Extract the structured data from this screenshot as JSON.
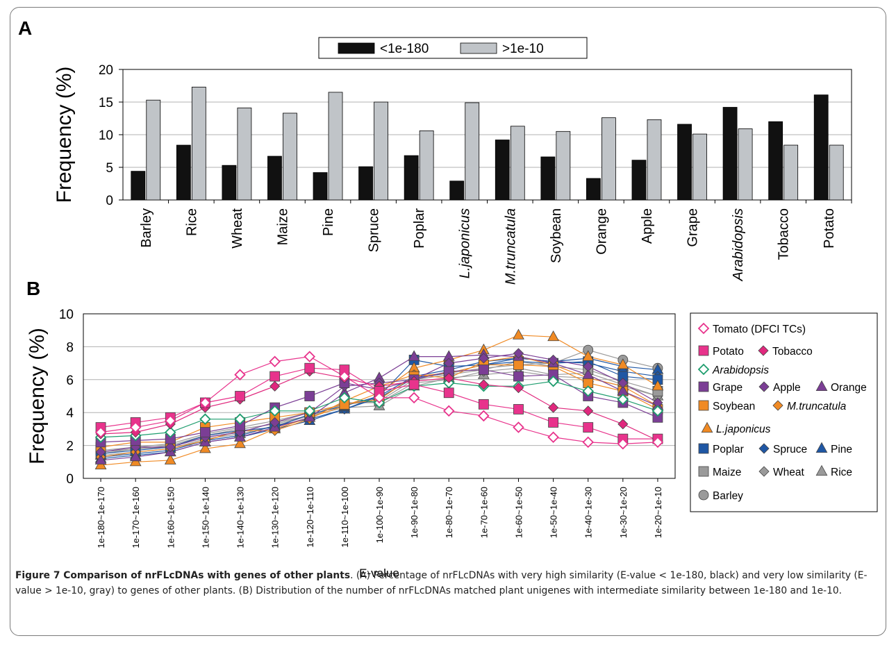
{
  "panel_a": {
    "label": "A",
    "chart_data": {
      "type": "bar",
      "categories": [
        "Barley",
        "Rice",
        "Wheat",
        "Maize",
        "Pine",
        "Spruce",
        "Poplar",
        "L.japonicus",
        "M.truncatula",
        "Soybean",
        "Orange",
        "Apple",
        "Grape",
        "Arabidopsis",
        "Tobacco",
        "Potato"
      ],
      "italic_categories": [
        "L.japonicus",
        "M.truncatula",
        "Arabidopsis"
      ],
      "series": [
        {
          "name": "<1e-180",
          "color": "#111111",
          "values": [
            4.4,
            8.4,
            5.3,
            6.7,
            4.2,
            5.1,
            6.8,
            2.9,
            9.2,
            6.6,
            3.3,
            6.1,
            11.6,
            14.2,
            12.0,
            16.1
          ]
        },
        {
          "name": ">1e-10",
          "color": "#c0c4c8",
          "values": [
            15.3,
            17.3,
            14.1,
            13.3,
            16.5,
            15.0,
            10.6,
            14.9,
            11.3,
            10.5,
            12.6,
            12.3,
            10.1,
            10.9,
            8.4,
            8.4
          ]
        }
      ],
      "title": "",
      "xlabel": "",
      "ylabel": "Frequency (%)",
      "ylim": [
        0,
        20
      ],
      "yticks": [
        "0",
        "5",
        "10",
        "15",
        "20"
      ],
      "grid": true,
      "legend_position": "top-center"
    }
  },
  "panel_b": {
    "label": "B",
    "chart_data": {
      "type": "line",
      "x": [
        "1e-180~1e-170",
        "1e-170~1e-160",
        "1e-160~1e-150",
        "1e-150~1e-140",
        "1e-140~1e-130",
        "1e-130~1e-120",
        "1e-120~1e-110",
        "1e-110~1e-100",
        "1e-100~1e-90",
        "1e-90~1e-80",
        "1e-80~1e-70",
        "1e-70~1e-60",
        "1e-60~1e-50",
        "1e-50~1e-40",
        "1e-40~1e-30",
        "1e-30~1e-20",
        "1e-20~1e-10"
      ],
      "xlabel": "E-value",
      "ylabel": "Frequency (%)",
      "ylim": [
        0,
        10
      ],
      "yticks": [
        "0",
        "2",
        "4",
        "6",
        "8",
        "10"
      ],
      "grid": true,
      "legend_position": "right",
      "series": [
        {
          "name": "Tomato (DFCI TCs)",
          "marker": "diamond-open",
          "color": "#e8338c",
          "values": [
            2.8,
            3.1,
            3.5,
            4.6,
            6.3,
            7.1,
            7.4,
            6.2,
            4.9,
            4.9,
            4.1,
            3.8,
            3.1,
            2.5,
            2.2,
            2.1,
            2.2
          ]
        },
        {
          "name": "Potato",
          "marker": "square",
          "color": "#e8338c",
          "values": [
            3.1,
            3.4,
            3.7,
            4.6,
            5.0,
            6.2,
            6.7,
            6.6,
            5.3,
            5.7,
            5.2,
            4.5,
            4.2,
            3.4,
            3.1,
            2.4,
            2.4
          ]
        },
        {
          "name": "Tobacco",
          "marker": "diamond",
          "color": "#e0287d",
          "values": [
            2.7,
            2.8,
            3.3,
            4.3,
            4.8,
            5.6,
            6.5,
            6.1,
            5.6,
            5.9,
            6.1,
            5.7,
            5.5,
            4.3,
            4.1,
            3.3,
            2.3
          ]
        },
        {
          "name": "Arabidopsis",
          "marker": "diamond-open",
          "color": "#1e9d6e",
          "values": [
            2.5,
            2.6,
            2.8,
            3.6,
            3.6,
            4.1,
            4.1,
            4.9,
            4.6,
            5.6,
            5.8,
            5.6,
            5.6,
            5.9,
            5.3,
            4.8,
            4.1
          ]
        },
        {
          "name": "Grape",
          "marker": "square",
          "color": "#7b3e95",
          "values": [
            2.2,
            2.3,
            2.4,
            2.8,
            3.2,
            4.3,
            5.0,
            5.8,
            5.4,
            6.0,
            6.5,
            6.6,
            6.2,
            6.3,
            5.0,
            4.6,
            3.7
          ]
        },
        {
          "name": "Apple",
          "marker": "diamond",
          "color": "#7b3e95",
          "values": [
            1.6,
            1.9,
            1.9,
            2.5,
            2.8,
            3.4,
            4.0,
            5.6,
            5.8,
            6.0,
            7.0,
            7.3,
            7.6,
            7.2,
            6.8,
            5.8,
            4.6
          ]
        },
        {
          "name": "Orange",
          "marker": "triangle",
          "color": "#7b3e95",
          "values": [
            1.1,
            1.3,
            1.6,
            2.2,
            2.5,
            3.1,
            3.7,
            5.2,
            6.1,
            7.4,
            7.4,
            7.5,
            7.4,
            7.0,
            6.3,
            5.3,
            4.4
          ]
        },
        {
          "name": "Soybean",
          "marker": "square",
          "color": "#f08a24",
          "values": [
            1.9,
            2.2,
            2.2,
            3.1,
            3.4,
            3.7,
            4.0,
            4.5,
            4.8,
            6.2,
            6.4,
            6.9,
            6.9,
            6.8,
            5.8,
            5.3,
            4.2
          ]
        },
        {
          "name": "M.truncatula",
          "marker": "diamond",
          "color": "#f08a24",
          "values": [
            1.3,
            1.6,
            1.8,
            2.3,
            2.9,
            2.9,
            3.6,
            4.7,
            5.6,
            6.3,
            6.1,
            7.1,
            7.4,
            6.9,
            6.1,
            5.6,
            4.4
          ]
        },
        {
          "name": "L.japonicus",
          "marker": "triangle",
          "color": "#f08a24",
          "values": [
            0.8,
            1.0,
            1.1,
            1.8,
            2.1,
            3.0,
            3.7,
            4.4,
            5.2,
            6.7,
            7.2,
            7.8,
            8.7,
            8.6,
            7.4,
            6.9,
            5.6
          ]
        },
        {
          "name": "Poplar",
          "marker": "square",
          "color": "#1f57a4",
          "values": [
            1.5,
            1.7,
            1.9,
            2.6,
            2.9,
            3.1,
            3.9,
            4.4,
            5.0,
            7.2,
            6.8,
            6.9,
            7.1,
            7.0,
            7.1,
            6.2,
            6.0
          ]
        },
        {
          "name": "Spruce",
          "marker": "diamond",
          "color": "#1f57a4",
          "values": [
            1.3,
            1.5,
            1.7,
            2.3,
            2.6,
            3.2,
            3.6,
            4.2,
            4.9,
            6.1,
            6.4,
            6.9,
            7.3,
            7.1,
            7.0,
            6.5,
            6.2
          ]
        },
        {
          "name": "Pine",
          "marker": "triangle",
          "color": "#1f57a4",
          "values": [
            1.2,
            1.4,
            1.6,
            2.2,
            2.5,
            3.0,
            3.5,
            4.2,
            5.0,
            6.2,
            6.6,
            7.1,
            7.3,
            7.1,
            7.3,
            6.8,
            6.6
          ]
        },
        {
          "name": "Maize",
          "marker": "square",
          "color": "#9a9a9a",
          "values": [
            1.7,
            1.9,
            2.1,
            2.7,
            3.1,
            3.5,
            4.0,
            4.5,
            4.7,
            6.0,
            6.3,
            6.6,
            7.1,
            6.8,
            6.6,
            5.9,
            5.3
          ]
        },
        {
          "name": "Wheat",
          "marker": "diamond",
          "color": "#9a9a9a",
          "values": [
            1.5,
            1.8,
            1.9,
            2.5,
            2.8,
            3.4,
            3.8,
            4.6,
            4.6,
            5.8,
            6.0,
            6.5,
            6.7,
            6.3,
            6.4,
            5.7,
            5.0
          ]
        },
        {
          "name": "Rice",
          "marker": "triangle",
          "color": "#9a9a9a",
          "values": [
            1.4,
            1.6,
            1.8,
            2.4,
            2.7,
            3.2,
            3.8,
            4.3,
            4.4,
            5.6,
            6.1,
            6.3,
            6.5,
            6.2,
            6.1,
            5.6,
            5.0
          ]
        },
        {
          "name": "Barley",
          "marker": "circle",
          "color": "#9a9a9a",
          "values": [
            1.6,
            1.8,
            2.0,
            2.6,
            3.0,
            3.3,
            3.8,
            4.5,
            4.9,
            6.1,
            6.4,
            6.7,
            6.9,
            7.0,
            7.8,
            7.2,
            6.7
          ]
        }
      ]
    }
  },
  "legend_b_rows": [
    [
      "Tomato (DFCI TCs)"
    ],
    [
      "Potato",
      "Tobacco"
    ],
    [
      "Arabidopsis"
    ],
    [
      "Grape",
      "Apple",
      "Orange"
    ],
    [
      "Soybean",
      "M.truncatula"
    ],
    [
      "L.japonicus"
    ],
    [
      "Poplar",
      "Spruce",
      "Pine"
    ],
    [
      "Maize",
      "Wheat",
      "Rice"
    ],
    [
      "Barley"
    ]
  ],
  "caption": {
    "title": "Figure 7 Comparison of nrFLcDNAs with genes of other plants",
    "body": ". (A) Percentage of nrFLcDNAs with very high similarity (E-value < 1e-180, black) and very low similarity (E-value > 1e-10, gray) to genes of other plants. (B) Distribution of the number of nrFLcDNAs matched plant unigenes with intermediate similarity between 1e-180 and 1e-10."
  }
}
